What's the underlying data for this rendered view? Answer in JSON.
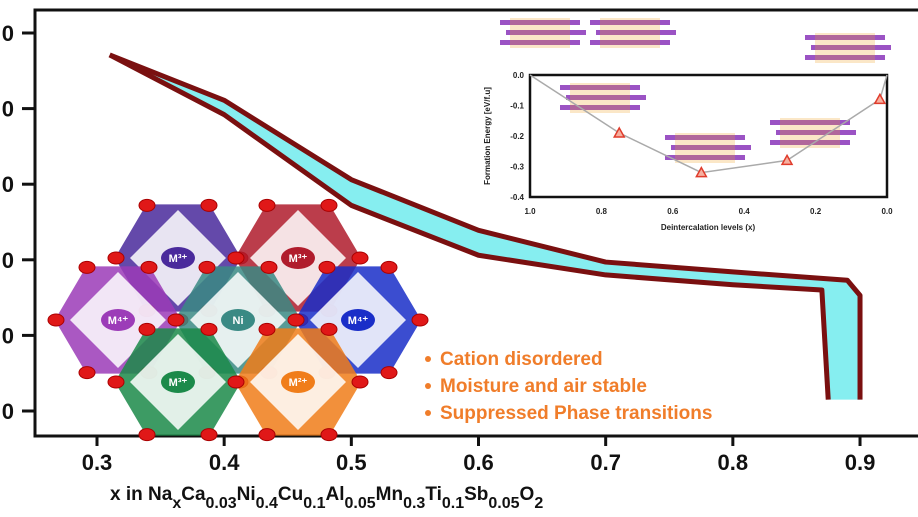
{
  "chart_data": [
    {
      "type": "line",
      "xlabel_parts": [
        "x in Na",
        "x",
        "Ca",
        "0.03",
        "Ni",
        "0.4",
        "Cu",
        "0.1",
        "Al",
        "0.05",
        "Mn",
        "0.3",
        "Ti",
        "0.1",
        "Sb",
        "0.05",
        "O",
        "2"
      ],
      "x_ticks": [
        "0.3",
        "0.4",
        "0.5",
        "0.6",
        "0.7",
        "0.8",
        "0.9"
      ],
      "xlim": [
        0.26,
        0.94
      ],
      "y_ticks_visible": [
        "0",
        "0",
        "0",
        "0",
        "0",
        "0"
      ],
      "series": [
        {
          "x": [
            0.31,
            0.4,
            0.5,
            0.6,
            0.7,
            0.8,
            0.89,
            0.9,
            0.9,
            0.9
          ],
          "y": [
            4.71,
            4.11,
            3.06,
            2.39,
            1.97,
            1.84,
            1.73,
            1.53,
            0.81,
            0.15
          ]
        },
        {
          "x": [
            0.31,
            0.4,
            0.5,
            0.6,
            0.7,
            0.8,
            0.87,
            0.875
          ],
          "y": [
            4.71,
            3.92,
            2.72,
            2.06,
            1.8,
            1.67,
            1.6,
            0.15
          ]
        }
      ],
      "line_color": "#7a1010",
      "fill_color": "#86eef0",
      "grid": false
    },
    {
      "type": "line",
      "xlabel": "Deintercalation levels (x)",
      "ylabel": "Formation Energy [eV/f.u]",
      "x_ticks": [
        "1.0",
        "0.8",
        "0.6",
        "0.4",
        "0.2",
        "0.0"
      ],
      "y_ticks": [
        "0.0",
        "-0.1",
        "-0.2",
        "-0.3",
        "-0.4"
      ],
      "xlim": [
        1.0,
        0.0
      ],
      "ylim": [
        -0.4,
        0.0
      ],
      "x": [
        1.0,
        0.75,
        0.52,
        0.28,
        0.02,
        0.0
      ],
      "y": [
        0.0,
        -0.19,
        -0.32,
        -0.28,
        -0.08,
        0.0
      ],
      "marker": "triangle",
      "marker_color": "#e03c2c",
      "line_color": "#aaaaaa"
    }
  ],
  "structure": {
    "ions": [
      "M³⁺",
      "M³⁺",
      "M⁴⁺",
      "Ni",
      "M⁴⁺",
      "M³⁺",
      "M²⁺"
    ],
    "colors": [
      "#4a2a9c",
      "#b01c2c",
      "#9c3cb8",
      "#3a8a84",
      "#1a2ec8",
      "#1c8a4a",
      "#f07d1a"
    ]
  },
  "bullets": [
    "Cation disordered",
    "Moisture and air stable",
    "Suppressed Phase transitions"
  ]
}
